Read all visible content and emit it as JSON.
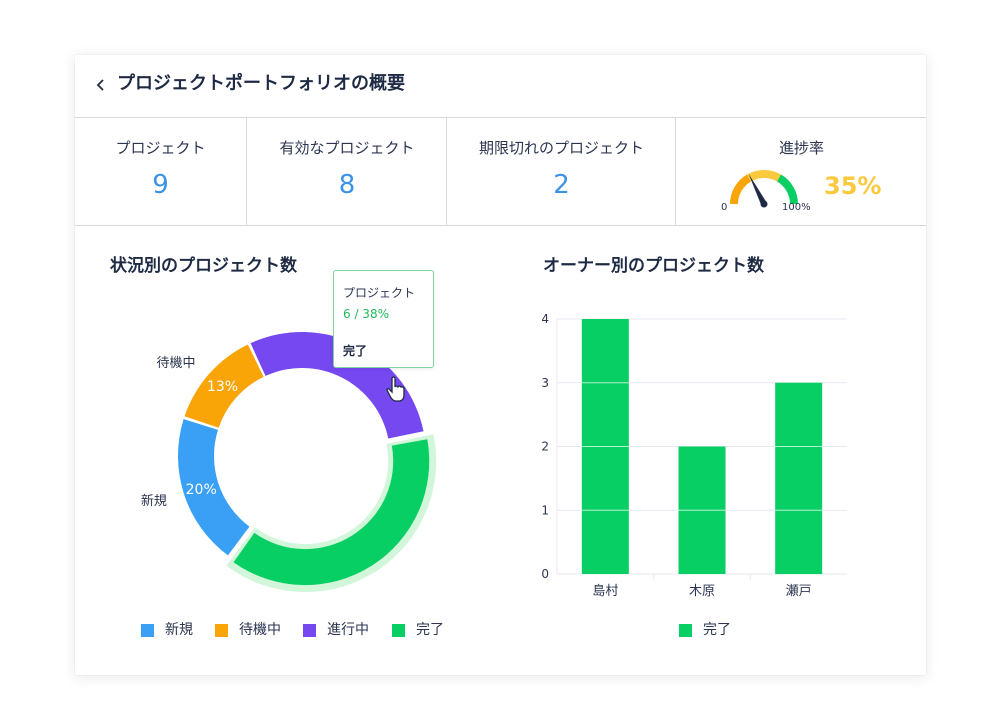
{
  "header": {
    "back_icon": "chevron-left-icon",
    "title": "プロジェクトポートフォリオの概要"
  },
  "kpis": {
    "projects": {
      "label": "プロジェクト",
      "value": "9"
    },
    "active": {
      "label": "有効なプロジェクト",
      "value": "8"
    },
    "overdue": {
      "label": "期限切れのプロジェクト",
      "value": "2"
    },
    "progress": {
      "label": "進捗率",
      "min_label": "0",
      "max_label": "100%",
      "value_label": "35%",
      "value": 0.35
    }
  },
  "colors": {
    "new": "#3aa0f5",
    "waiting": "#f9a407",
    "in_progress": "#7548f0",
    "done": "#08cf64",
    "kpi_blue": "#3a93e6",
    "gauge_yellow": "#f9c93e"
  },
  "status_chart": {
    "title": "状況別のプロジェクト数",
    "tooltip": {
      "title": "プロジェクト",
      "value": "6 / 38%",
      "status": "完了"
    },
    "legend": [
      "新規",
      "待機中",
      "進行中",
      "完了"
    ]
  },
  "owner_chart": {
    "title": "オーナー別のプロジェクト数",
    "legend": [
      "完了"
    ]
  },
  "chart_data": [
    {
      "type": "pie",
      "title": "状況別のプロジェクト数",
      "donut": true,
      "categories": [
        "新規",
        "待機中",
        "進行中",
        "完了"
      ],
      "values": [
        20,
        13,
        29,
        38
      ],
      "data_labels": [
        "20%",
        "13%",
        "29%",
        ""
      ],
      "highlighted": "完了"
    },
    {
      "type": "bar",
      "title": "オーナー別のプロジェクト数",
      "categories": [
        "島村",
        "木原",
        "瀬戸"
      ],
      "series": [
        {
          "name": "完了",
          "values": [
            4,
            2,
            3
          ]
        }
      ],
      "ylim": [
        0,
        4
      ],
      "yticks": [
        "0",
        "1",
        "2",
        "3",
        "4"
      ],
      "grid": true,
      "legend": "bottom"
    }
  ]
}
